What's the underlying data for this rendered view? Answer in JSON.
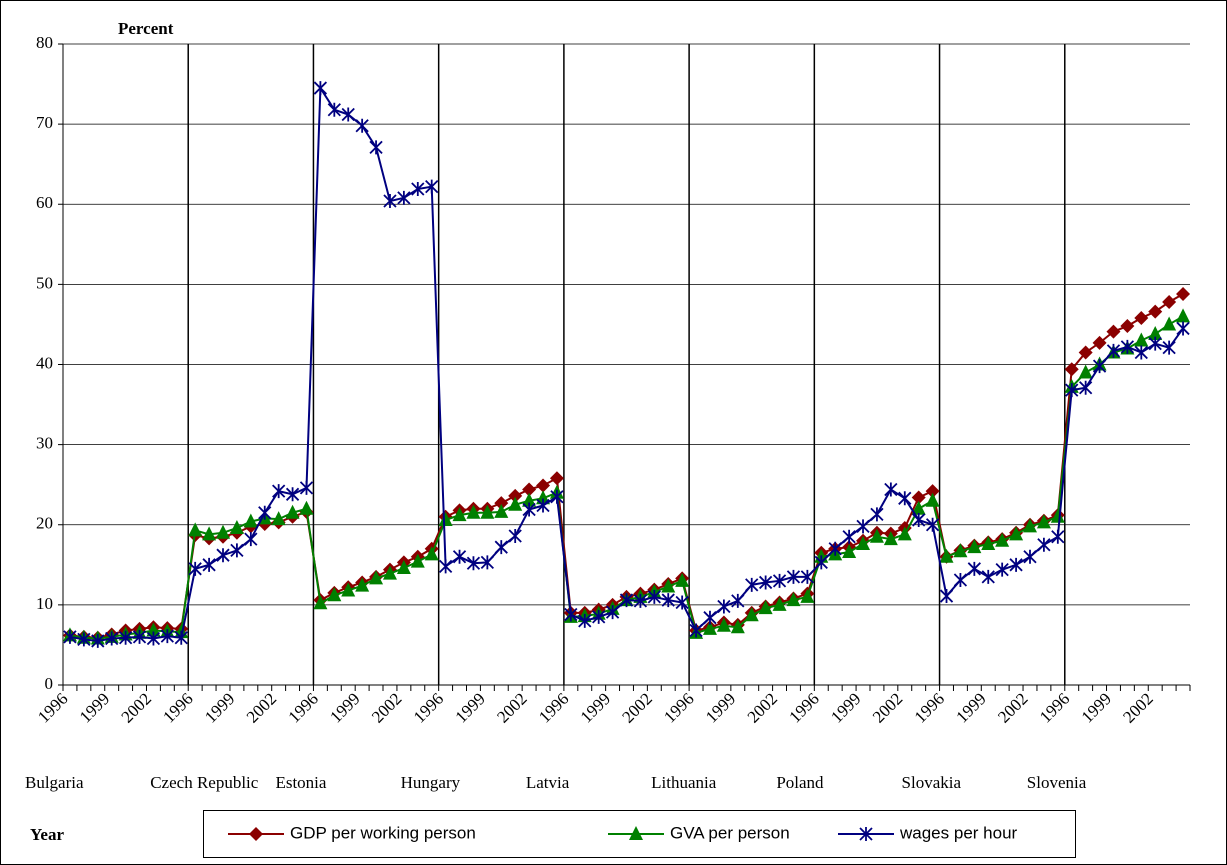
{
  "chart_data": {
    "type": "line",
    "y_label": "Percent",
    "x_label": "Year",
    "categories": [
      "1996",
      null,
      null,
      "1999",
      null,
      null,
      "2002",
      null,
      null,
      "1996",
      null,
      null,
      "1999",
      null,
      null,
      "2002",
      null,
      null,
      "1996",
      null,
      null,
      "1999",
      null,
      null,
      "2002",
      null,
      null,
      "1996",
      null,
      null,
      "1999",
      null,
      null,
      "2002",
      null,
      null,
      "1996",
      null,
      null,
      "1999",
      null,
      null,
      "2002",
      null,
      null,
      "1996",
      null,
      null,
      "1999",
      null,
      null,
      "2002",
      null,
      null,
      "1996",
      null,
      null,
      "1999",
      null,
      null,
      "2002",
      null,
      null,
      "1996",
      null,
      null,
      "1999",
      null,
      null,
      "2002",
      null,
      null,
      "1996",
      null,
      null,
      "1999",
      null,
      null,
      "2002",
      null,
      null
    ],
    "groups": [
      "Bulgaria",
      "Czech Republic",
      "Estonia",
      "Hungary",
      "Latvia",
      "Lithuania",
      "Poland",
      "Slovakia",
      "Slovenia"
    ],
    "series": [
      {
        "name": "GDP per working person",
        "color": "#8b0000",
        "marker": "diamond",
        "values": [
          6.2,
          6.0,
          5.9,
          6.3,
          6.8,
          7.0,
          7.2,
          7.1,
          7.0,
          18.7,
          18.3,
          18.5,
          19.0,
          19.8,
          20.1,
          20.3,
          21.0,
          21.6,
          10.6,
          11.5,
          12.2,
          12.8,
          13.5,
          14.4,
          15.3,
          16.0,
          17.0,
          21.0,
          21.8,
          22.0,
          22.0,
          22.7,
          23.6,
          24.4,
          24.9,
          25.8,
          9.0,
          9.0,
          9.4,
          10.0,
          11.0,
          11.4,
          11.9,
          12.6,
          13.3,
          6.8,
          7.2,
          7.8,
          7.5,
          9.0,
          9.8,
          10.3,
          10.8,
          11.4,
          16.5,
          17.0,
          17.2,
          18.0,
          19.0,
          18.9,
          19.6,
          23.4,
          24.2,
          16.0,
          16.8,
          17.4,
          17.8,
          18.2,
          19.0,
          20.0,
          20.5,
          21.2,
          39.4,
          41.5,
          42.7,
          44.1,
          44.8,
          45.8,
          46.6,
          47.8,
          48.8
        ]
      },
      {
        "name": "GVA per person",
        "color": "#008000",
        "marker": "triangle",
        "values": [
          6.2,
          5.9,
          5.8,
          6.0,
          6.3,
          6.5,
          6.8,
          6.7,
          6.6,
          19.3,
          18.8,
          19.0,
          19.6,
          20.4,
          20.8,
          20.7,
          21.5,
          22.0,
          10.2,
          11.2,
          11.8,
          12.4,
          13.3,
          13.9,
          14.6,
          15.4,
          16.3,
          20.6,
          21.2,
          21.5,
          21.5,
          21.6,
          22.5,
          23.0,
          23.3,
          24.0,
          8.5,
          8.6,
          8.9,
          9.5,
          10.6,
          11.0,
          11.6,
          12.3,
          13.0,
          6.5,
          7.0,
          7.4,
          7.2,
          8.7,
          9.6,
          10.0,
          10.6,
          11.0,
          16.0,
          16.3,
          16.6,
          17.6,
          18.5,
          18.2,
          18.8,
          22.0,
          23.0,
          16.0,
          16.7,
          17.2,
          17.6,
          18.0,
          18.8,
          19.8,
          20.3,
          21.0,
          37.2,
          39.0,
          40.0,
          41.5,
          42.0,
          43.0,
          43.8,
          45.0,
          46.0
        ]
      },
      {
        "name": "wages per hour",
        "color": "#000080",
        "marker": "asterisk",
        "values": [
          6.0,
          5.7,
          5.5,
          5.8,
          5.9,
          6.0,
          5.8,
          6.1,
          5.9,
          14.5,
          15.0,
          16.2,
          16.8,
          18.2,
          21.5,
          24.2,
          23.8,
          24.6,
          74.5,
          71.8,
          71.2,
          69.8,
          67.1,
          60.4,
          60.8,
          61.9,
          62.2,
          14.8,
          16.0,
          15.2,
          15.3,
          17.2,
          18.6,
          21.9,
          22.4,
          23.5,
          8.8,
          8.0,
          8.5,
          9.1,
          10.6,
          10.5,
          11.0,
          10.6,
          10.3,
          6.8,
          8.4,
          9.8,
          10.5,
          12.5,
          12.8,
          13.0,
          13.5,
          13.5,
          15.3,
          17.0,
          18.5,
          19.8,
          21.3,
          24.4,
          23.3,
          20.6,
          20.0,
          11.1,
          13.1,
          14.5,
          13.5,
          14.4,
          15.0,
          16.0,
          17.5,
          18.5,
          36.8,
          37.1,
          39.8,
          41.7,
          42.2,
          41.5,
          42.6,
          42.1,
          44.5
        ]
      }
    ],
    "ylim": [
      0,
      80
    ],
    "yticks": [
      0,
      10,
      20,
      30,
      40,
      50,
      60,
      70,
      80
    ],
    "grid": true,
    "legend": "bottom"
  }
}
